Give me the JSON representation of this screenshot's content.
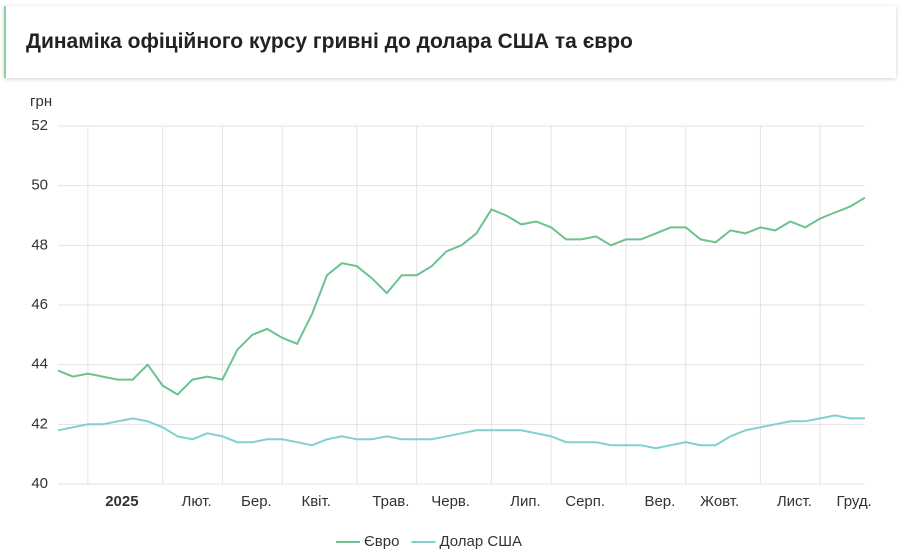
{
  "header": {
    "title": "Динаміка офіційного курсу гривні до долара США та євро"
  },
  "chart_data": {
    "type": "line",
    "y_label": "грн",
    "categories": [
      null,
      null,
      "2025",
      null,
      null,
      null,
      null,
      "Лют.",
      null,
      null,
      null,
      "Бер.",
      null,
      null,
      null,
      "Квіт.",
      null,
      null,
      null,
      null,
      "Трав.",
      null,
      null,
      null,
      "Черв.",
      null,
      null,
      null,
      null,
      "Лип.",
      null,
      null,
      null,
      "Серп.",
      null,
      null,
      null,
      null,
      "Вер.",
      null,
      null,
      null,
      "Жовт.",
      null,
      null,
      null,
      null,
      "Лист.",
      null,
      null,
      null,
      "Груд.",
      null,
      null,
      null
    ],
    "series": [
      {
        "name": "Євро",
        "color": "#6cc28e",
        "values": [
          43.8,
          43.6,
          43.7,
          43.6,
          43.5,
          43.5,
          44.0,
          43.3,
          43.0,
          43.5,
          43.6,
          43.5,
          44.5,
          45.0,
          45.2,
          44.9,
          44.7,
          45.7,
          47.0,
          47.4,
          47.3,
          46.9,
          46.4,
          47.0,
          47.0,
          47.3,
          47.8,
          48.0,
          48.4,
          49.2,
          49.0,
          48.7,
          48.8,
          48.6,
          48.2,
          48.2,
          48.3,
          48.0,
          48.2,
          48.2,
          48.4,
          48.6,
          48.6,
          48.2,
          48.1,
          48.5,
          48.4,
          48.6,
          48.5,
          48.8,
          48.6,
          48.9,
          49.1,
          49.3,
          49.6
        ]
      },
      {
        "name": "Долар США",
        "color": "#7fd1d0",
        "values": [
          41.8,
          41.9,
          42.0,
          42.0,
          42.1,
          42.2,
          42.1,
          41.9,
          41.6,
          41.5,
          41.7,
          41.6,
          41.4,
          41.4,
          41.5,
          41.5,
          41.4,
          41.3,
          41.5,
          41.6,
          41.5,
          41.5,
          41.6,
          41.5,
          41.5,
          41.5,
          41.6,
          41.7,
          41.8,
          41.8,
          41.8,
          41.8,
          41.7,
          41.6,
          41.4,
          41.4,
          41.4,
          41.3,
          41.3,
          41.3,
          41.2,
          41.3,
          41.4,
          41.3,
          41.3,
          41.6,
          41.8,
          41.9,
          42.0,
          42.1,
          42.1,
          42.2,
          42.3,
          42.2,
          42.2
        ]
      }
    ],
    "ylim": [
      40,
      52
    ],
    "yticks": [
      40,
      42,
      44,
      46,
      48,
      50,
      52
    ],
    "grid": true,
    "legend": "bottom"
  }
}
